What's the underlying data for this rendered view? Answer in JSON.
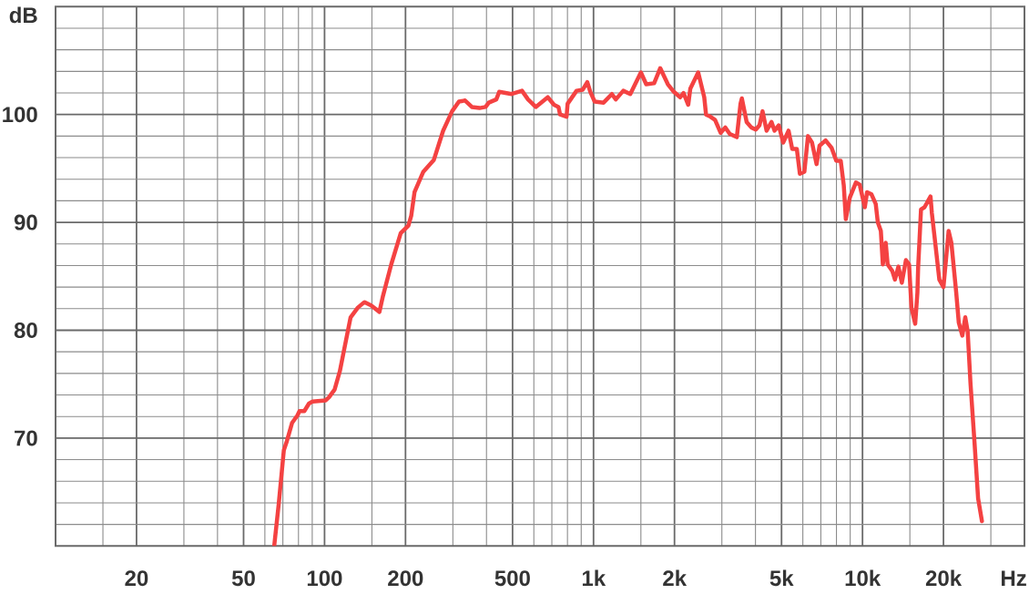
{
  "chart_data": {
    "type": "line",
    "xlabel": "Hz",
    "ylabel": "dB",
    "log": "x",
    "grid": true,
    "line_style": "solid",
    "xlim": [
      10,
      40000
    ],
    "ylim": [
      60,
      110
    ],
    "xticks": [
      {
        "value": 15,
        "label": null
      },
      20,
      {
        "value": 30,
        "label": null
      },
      {
        "value": 40,
        "label": null
      },
      50,
      {
        "value": 60,
        "label": null
      },
      {
        "value": 70,
        "label": null
      },
      {
        "value": 80,
        "label": null
      },
      {
        "value": 90,
        "label": null
      },
      100,
      {
        "value": 150,
        "label": null
      },
      200,
      {
        "value": 300,
        "label": null
      },
      {
        "value": 400,
        "label": null
      },
      500,
      {
        "value": 600,
        "label": null
      },
      {
        "value": 700,
        "label": null
      },
      {
        "value": 800,
        "label": null
      },
      {
        "value": 900,
        "label": null
      },
      {
        "value": 1000,
        "label": "1k"
      },
      {
        "value": 1500,
        "label": null
      },
      {
        "value": 2000,
        "label": "2k"
      },
      {
        "value": 3000,
        "label": null
      },
      {
        "value": 4000,
        "label": null
      },
      {
        "value": 5000,
        "label": "5k"
      },
      {
        "value": 6000,
        "label": null
      },
      {
        "value": 7000,
        "label": null
      },
      {
        "value": 8000,
        "label": null
      },
      {
        "value": 9000,
        "label": null
      },
      {
        "value": 10000,
        "label": "10k"
      },
      {
        "value": 15000,
        "label": null
      },
      {
        "value": 20000,
        "label": "20k"
      },
      {
        "value": 30000,
        "label": null
      }
    ],
    "yticks": [
      {
        "value": 62,
        "label": null
      },
      {
        "value": 64,
        "label": null
      },
      {
        "value": 66,
        "label": null
      },
      {
        "value": 68,
        "label": null
      },
      70,
      {
        "value": 72,
        "label": null
      },
      {
        "value": 74,
        "label": null
      },
      {
        "value": 76,
        "label": null
      },
      {
        "value": 78,
        "label": null
      },
      80,
      {
        "value": 82,
        "label": null
      },
      {
        "value": 84,
        "label": null
      },
      {
        "value": 86,
        "label": null
      },
      {
        "value": 88,
        "label": null
      },
      90,
      {
        "value": 92,
        "label": null
      },
      {
        "value": 94,
        "label": null
      },
      {
        "value": 96,
        "label": null
      },
      {
        "value": 98,
        "label": null
      },
      100,
      {
        "value": 102,
        "label": null
      },
      {
        "value": 104,
        "label": null
      },
      {
        "value": 106,
        "label": null
      },
      {
        "value": 108,
        "label": null
      }
    ],
    "x": [
      65,
      67.5,
      70.6,
      72.4,
      75.7,
      79.3,
      80.7,
      84.1,
      87.5,
      90.3,
      101,
      104,
      109,
      114,
      120,
      125,
      133,
      139,
      141,
      149,
      160,
      165,
      177,
      192,
      205,
      210,
      216,
      233,
      255,
      276,
      298,
      316,
      333,
      353,
      377,
      397,
      408,
      435,
      446,
      496,
      542,
      571,
      610,
      676,
      713,
      741,
      751,
      794,
      801,
      865,
      912,
      948,
      973,
      1010,
      1090,
      1170,
      1210,
      1290,
      1370,
      1500,
      1570,
      1680,
      1770,
      1890,
      1990,
      2100,
      2160,
      2250,
      2290,
      2450,
      2580,
      2620,
      2720,
      2830,
      2970,
      3090,
      3210,
      3410,
      3520,
      3560,
      3710,
      3860,
      4010,
      4140,
      4250,
      4400,
      4590,
      4710,
      4880,
      5070,
      5310,
      5480,
      5700,
      5850,
      6080,
      6270,
      6490,
      6750,
      6920,
      7290,
      7680,
      7990,
      8300,
      8520,
      8670,
      8970,
      9450,
      9760,
      10200,
      10400,
      10800,
      11200,
      11400,
      11700,
      11900,
      12200,
      12400,
      12900,
      13200,
      13600,
      14000,
      14500,
      14900,
      15100,
      15200,
      15700,
      16000,
      16100,
      16500,
      17000,
      17900,
      18100,
      18600,
      19300,
      20000,
      20900,
      21400,
      22300,
      22800,
      23500,
      24100,
      24600,
      25200,
      26100,
      26900,
      27800
    ],
    "series": [
      {
        "color": "#f44242",
        "values": [
          60.0,
          63.8,
          68.9,
          69.7,
          71.4,
          72.1,
          72.5,
          72.5,
          73.2,
          73.4,
          73.5,
          73.8,
          74.5,
          76.2,
          79.0,
          81.2,
          82.1,
          82.5,
          82.6,
          82.3,
          81.7,
          83.2,
          86.1,
          89.0,
          89.7,
          90.6,
          92.8,
          94.7,
          95.8,
          98.5,
          100.3,
          101.2,
          101.3,
          100.7,
          100.6,
          100.7,
          101.1,
          101.4,
          102.1,
          101.9,
          102.2,
          101.4,
          100.7,
          101.6,
          100.9,
          100.7,
          100.0,
          99.8,
          101.0,
          102.2,
          102.3,
          103.0,
          102.1,
          101.2,
          101.1,
          101.9,
          101.4,
          102.2,
          101.9,
          103.9,
          102.8,
          102.9,
          104.3,
          102.8,
          102.1,
          101.6,
          102.0,
          100.9,
          102.4,
          103.9,
          101.6,
          100.0,
          99.8,
          99.5,
          98.3,
          98.8,
          98.2,
          97.9,
          101.0,
          101.5,
          99.3,
          98.8,
          98.6,
          99.0,
          100.3,
          98.5,
          99.3,
          98.5,
          99.0,
          97.4,
          98.5,
          96.8,
          96.8,
          94.5,
          94.7,
          98.0,
          97.4,
          95.4,
          97.1,
          97.6,
          96.9,
          95.7,
          95.7,
          93.4,
          90.3,
          92.3,
          93.7,
          93.5,
          91.4,
          92.8,
          92.6,
          91.7,
          90.0,
          89.2,
          86.1,
          88.1,
          86.1,
          85.5,
          84.7,
          85.9,
          84.4,
          86.5,
          86.1,
          83.5,
          82.1,
          80.6,
          83.5,
          85.8,
          91.2,
          91.4,
          92.4,
          90.9,
          88.3,
          84.7,
          84.0,
          89.2,
          88.1,
          83.5,
          80.7,
          79.5,
          81.2,
          79.9,
          75.1,
          69.5,
          64.4,
          62.3
        ]
      }
    ]
  }
}
